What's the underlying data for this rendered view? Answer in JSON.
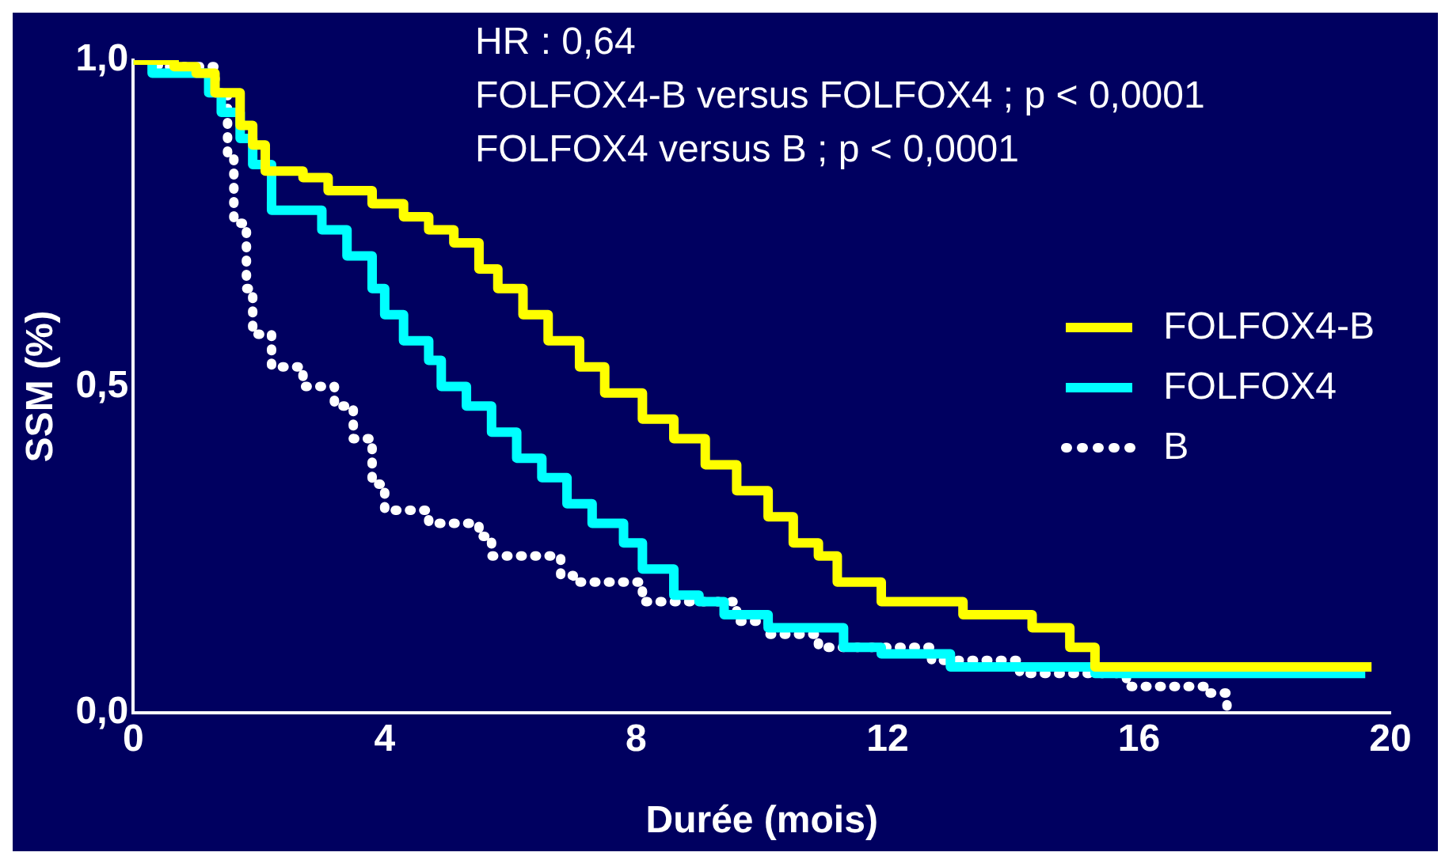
{
  "chart_data": {
    "type": "step",
    "xlabel": "Durée (mois)",
    "ylabel": "SSM (%)",
    "annotations": [
      "HR : 0,64",
      "FOLFOX4-B versus FOLFOX4 ; p < 0,0001",
      "FOLFOX4 versus B ; p < 0,0001"
    ],
    "xlim": [
      0,
      20
    ],
    "xticks": [
      0,
      4,
      8,
      12,
      16,
      20
    ],
    "ylim": [
      0,
      1
    ],
    "yticks": [
      {
        "value": 0,
        "label": "0,0"
      },
      {
        "value": 0.5,
        "label": "0,5"
      },
      {
        "value": 1,
        "label": "1,0"
      }
    ],
    "grid": false,
    "legend": "right",
    "marker": "none",
    "series": [
      {
        "name": "FOLFOX4-B",
        "color": "#ffff00",
        "line_style": "solid",
        "x": [
          0,
          0.65,
          1.0,
          1.3,
          1.7,
          1.9,
          2.1,
          2.7,
          3.1,
          3.8,
          4.3,
          4.7,
          5.1,
          5.5,
          5.8,
          6.2,
          6.6,
          7.1,
          7.5,
          8.1,
          8.6,
          9.1,
          9.6,
          10.1,
          10.5,
          10.9,
          11.2,
          11.9,
          13.2,
          14.3,
          14.9,
          15.3,
          19.7
        ],
        "values": [
          1,
          0.99,
          0.98,
          0.95,
          0.9,
          0.87,
          0.83,
          0.82,
          0.8,
          0.78,
          0.76,
          0.74,
          0.72,
          0.68,
          0.65,
          0.61,
          0.57,
          0.53,
          0.49,
          0.45,
          0.42,
          0.38,
          0.34,
          0.3,
          0.26,
          0.24,
          0.2,
          0.17,
          0.15,
          0.13,
          0.1,
          0.07,
          0.07
        ]
      },
      {
        "name": "FOLFOX4",
        "color": "#00ffff",
        "line_style": "solid",
        "x": [
          0,
          0.3,
          1.2,
          1.4,
          1.7,
          1.9,
          2.2,
          3.0,
          3.4,
          3.8,
          4.0,
          4.3,
          4.7,
          4.9,
          5.3,
          5.7,
          6.1,
          6.5,
          6.9,
          7.3,
          7.8,
          8.1,
          8.6,
          9.0,
          9.4,
          10.1,
          11.3,
          11.9,
          13.0,
          15.3,
          19.6
        ],
        "values": [
          1,
          0.98,
          0.95,
          0.92,
          0.88,
          0.84,
          0.77,
          0.74,
          0.7,
          0.65,
          0.61,
          0.57,
          0.54,
          0.5,
          0.47,
          0.43,
          0.39,
          0.36,
          0.32,
          0.29,
          0.26,
          0.22,
          0.18,
          0.17,
          0.15,
          0.13,
          0.1,
          0.09,
          0.07,
          0.06,
          0.06
        ]
      },
      {
        "name": "B",
        "color": "#ffffff",
        "line_style": "dotted",
        "x": [
          0,
          0.4,
          1.3,
          1.5,
          1.6,
          1.8,
          1.9,
          2.2,
          2.7,
          3.2,
          3.5,
          3.8,
          4.0,
          4.7,
          5.5,
          5.7,
          6.8,
          7.0,
          8.1,
          9.6,
          10.1,
          10.9,
          12.7,
          14.1,
          15.8,
          17.1,
          17.4
        ],
        "values": [
          1,
          0.99,
          0.95,
          0.85,
          0.75,
          0.65,
          0.58,
          0.53,
          0.5,
          0.47,
          0.42,
          0.35,
          0.31,
          0.29,
          0.27,
          0.24,
          0.21,
          0.2,
          0.17,
          0.14,
          0.12,
          0.1,
          0.08,
          0.06,
          0.04,
          0.03,
          0.01
        ]
      }
    ]
  }
}
